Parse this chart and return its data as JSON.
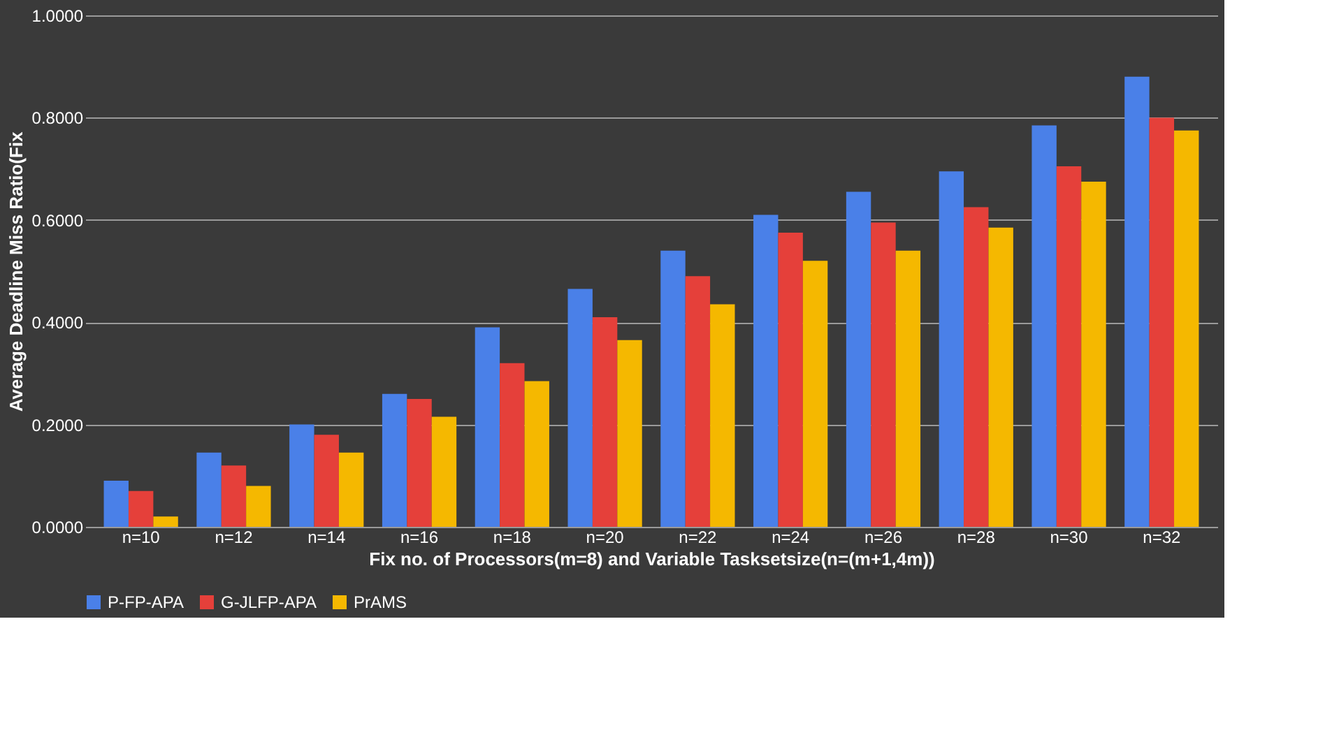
{
  "chart_data": {
    "type": "bar",
    "xlabel": "Fix no. of Processors(m=8) and Variable Tasksetsize(n=(m+1,4m))",
    "ylabel": "Average Deadline Miss Ratio(Fix",
    "categories": [
      "n=10",
      "n=12",
      "n=14",
      "n=16",
      "n=18",
      "n=20",
      "n=22",
      "n=24",
      "n=26",
      "n=28",
      "n=30",
      "n=32"
    ],
    "series": [
      {
        "name": "P-FP-APA",
        "color": "#4a80e8",
        "values": [
          0.09,
          0.145,
          0.2,
          0.26,
          0.39,
          0.465,
          0.54,
          0.61,
          0.655,
          0.695,
          0.785,
          0.88
        ]
      },
      {
        "name": "G-JLFP-APA",
        "color": "#e5403a",
        "values": [
          0.07,
          0.12,
          0.18,
          0.25,
          0.32,
          0.41,
          0.49,
          0.575,
          0.595,
          0.625,
          0.705,
          0.8
        ]
      },
      {
        "name": "PrAMS",
        "color": "#f5b800",
        "values": [
          0.02,
          0.08,
          0.145,
          0.215,
          0.285,
          0.365,
          0.435,
          0.52,
          0.54,
          0.585,
          0.675,
          0.775
        ]
      }
    ],
    "ylim": [
      0,
      1
    ],
    "yticks": [
      {
        "value": 0,
        "label": "0.0000"
      },
      {
        "value": 0.2,
        "label": "0.2000"
      },
      {
        "value": 0.4,
        "label": "0.4000"
      },
      {
        "value": 0.6,
        "label": "0.6000"
      },
      {
        "value": 0.8,
        "label": "0.8000"
      },
      {
        "value": 1,
        "label": "1.0000"
      }
    ],
    "grid": "y",
    "legend": "bottom"
  }
}
